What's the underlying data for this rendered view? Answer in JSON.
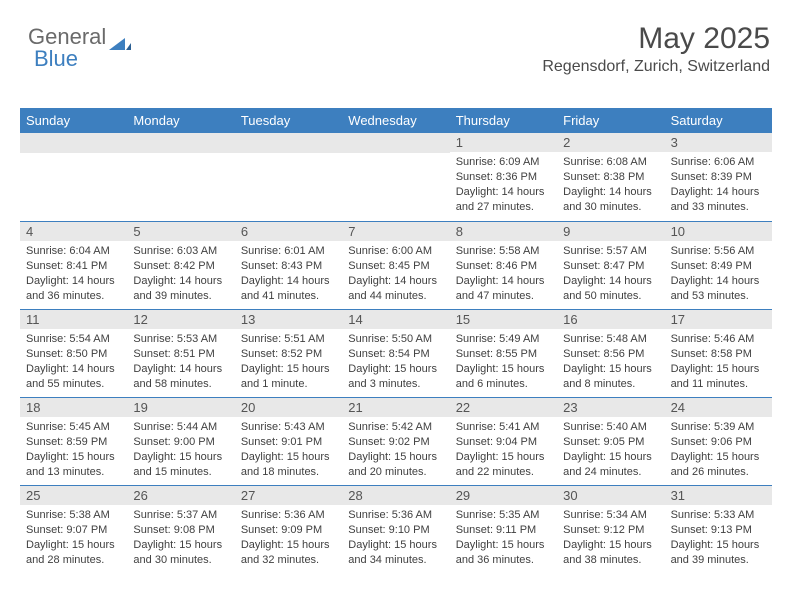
{
  "logo": {
    "text1": "General",
    "text2": "Blue"
  },
  "title": "May 2025",
  "subtitle": "Regensdorf, Zurich, Switzerland",
  "colors": {
    "header_bg": "#3d7fbf",
    "header_text": "#ffffff",
    "daynum_bg": "#e8e8e8",
    "border": "#3d7fbf",
    "body_text": "#404040",
    "logo_gray": "#6a6a6a",
    "logo_blue": "#3d7fbf"
  },
  "weekdays": [
    "Sunday",
    "Monday",
    "Tuesday",
    "Wednesday",
    "Thursday",
    "Friday",
    "Saturday"
  ],
  "weeks": [
    [
      null,
      null,
      null,
      null,
      {
        "n": "1",
        "sr": "6:09 AM",
        "ss": "8:36 PM",
        "dl": "14 hours and 27 minutes."
      },
      {
        "n": "2",
        "sr": "6:08 AM",
        "ss": "8:38 PM",
        "dl": "14 hours and 30 minutes."
      },
      {
        "n": "3",
        "sr": "6:06 AM",
        "ss": "8:39 PM",
        "dl": "14 hours and 33 minutes."
      }
    ],
    [
      {
        "n": "4",
        "sr": "6:04 AM",
        "ss": "8:41 PM",
        "dl": "14 hours and 36 minutes."
      },
      {
        "n": "5",
        "sr": "6:03 AM",
        "ss": "8:42 PM",
        "dl": "14 hours and 39 minutes."
      },
      {
        "n": "6",
        "sr": "6:01 AM",
        "ss": "8:43 PM",
        "dl": "14 hours and 41 minutes."
      },
      {
        "n": "7",
        "sr": "6:00 AM",
        "ss": "8:45 PM",
        "dl": "14 hours and 44 minutes."
      },
      {
        "n": "8",
        "sr": "5:58 AM",
        "ss": "8:46 PM",
        "dl": "14 hours and 47 minutes."
      },
      {
        "n": "9",
        "sr": "5:57 AM",
        "ss": "8:47 PM",
        "dl": "14 hours and 50 minutes."
      },
      {
        "n": "10",
        "sr": "5:56 AM",
        "ss": "8:49 PM",
        "dl": "14 hours and 53 minutes."
      }
    ],
    [
      {
        "n": "11",
        "sr": "5:54 AM",
        "ss": "8:50 PM",
        "dl": "14 hours and 55 minutes."
      },
      {
        "n": "12",
        "sr": "5:53 AM",
        "ss": "8:51 PM",
        "dl": "14 hours and 58 minutes."
      },
      {
        "n": "13",
        "sr": "5:51 AM",
        "ss": "8:52 PM",
        "dl": "15 hours and 1 minute."
      },
      {
        "n": "14",
        "sr": "5:50 AM",
        "ss": "8:54 PM",
        "dl": "15 hours and 3 minutes."
      },
      {
        "n": "15",
        "sr": "5:49 AM",
        "ss": "8:55 PM",
        "dl": "15 hours and 6 minutes."
      },
      {
        "n": "16",
        "sr": "5:48 AM",
        "ss": "8:56 PM",
        "dl": "15 hours and 8 minutes."
      },
      {
        "n": "17",
        "sr": "5:46 AM",
        "ss": "8:58 PM",
        "dl": "15 hours and 11 minutes."
      }
    ],
    [
      {
        "n": "18",
        "sr": "5:45 AM",
        "ss": "8:59 PM",
        "dl": "15 hours and 13 minutes."
      },
      {
        "n": "19",
        "sr": "5:44 AM",
        "ss": "9:00 PM",
        "dl": "15 hours and 15 minutes."
      },
      {
        "n": "20",
        "sr": "5:43 AM",
        "ss": "9:01 PM",
        "dl": "15 hours and 18 minutes."
      },
      {
        "n": "21",
        "sr": "5:42 AM",
        "ss": "9:02 PM",
        "dl": "15 hours and 20 minutes."
      },
      {
        "n": "22",
        "sr": "5:41 AM",
        "ss": "9:04 PM",
        "dl": "15 hours and 22 minutes."
      },
      {
        "n": "23",
        "sr": "5:40 AM",
        "ss": "9:05 PM",
        "dl": "15 hours and 24 minutes."
      },
      {
        "n": "24",
        "sr": "5:39 AM",
        "ss": "9:06 PM",
        "dl": "15 hours and 26 minutes."
      }
    ],
    [
      {
        "n": "25",
        "sr": "5:38 AM",
        "ss": "9:07 PM",
        "dl": "15 hours and 28 minutes."
      },
      {
        "n": "26",
        "sr": "5:37 AM",
        "ss": "9:08 PM",
        "dl": "15 hours and 30 minutes."
      },
      {
        "n": "27",
        "sr": "5:36 AM",
        "ss": "9:09 PM",
        "dl": "15 hours and 32 minutes."
      },
      {
        "n": "28",
        "sr": "5:36 AM",
        "ss": "9:10 PM",
        "dl": "15 hours and 34 minutes."
      },
      {
        "n": "29",
        "sr": "5:35 AM",
        "ss": "9:11 PM",
        "dl": "15 hours and 36 minutes."
      },
      {
        "n": "30",
        "sr": "5:34 AM",
        "ss": "9:12 PM",
        "dl": "15 hours and 38 minutes."
      },
      {
        "n": "31",
        "sr": "5:33 AM",
        "ss": "9:13 PM",
        "dl": "15 hours and 39 minutes."
      }
    ]
  ],
  "labels": {
    "sunrise": "Sunrise: ",
    "sunset": "Sunset: ",
    "daylight": "Daylight: "
  }
}
